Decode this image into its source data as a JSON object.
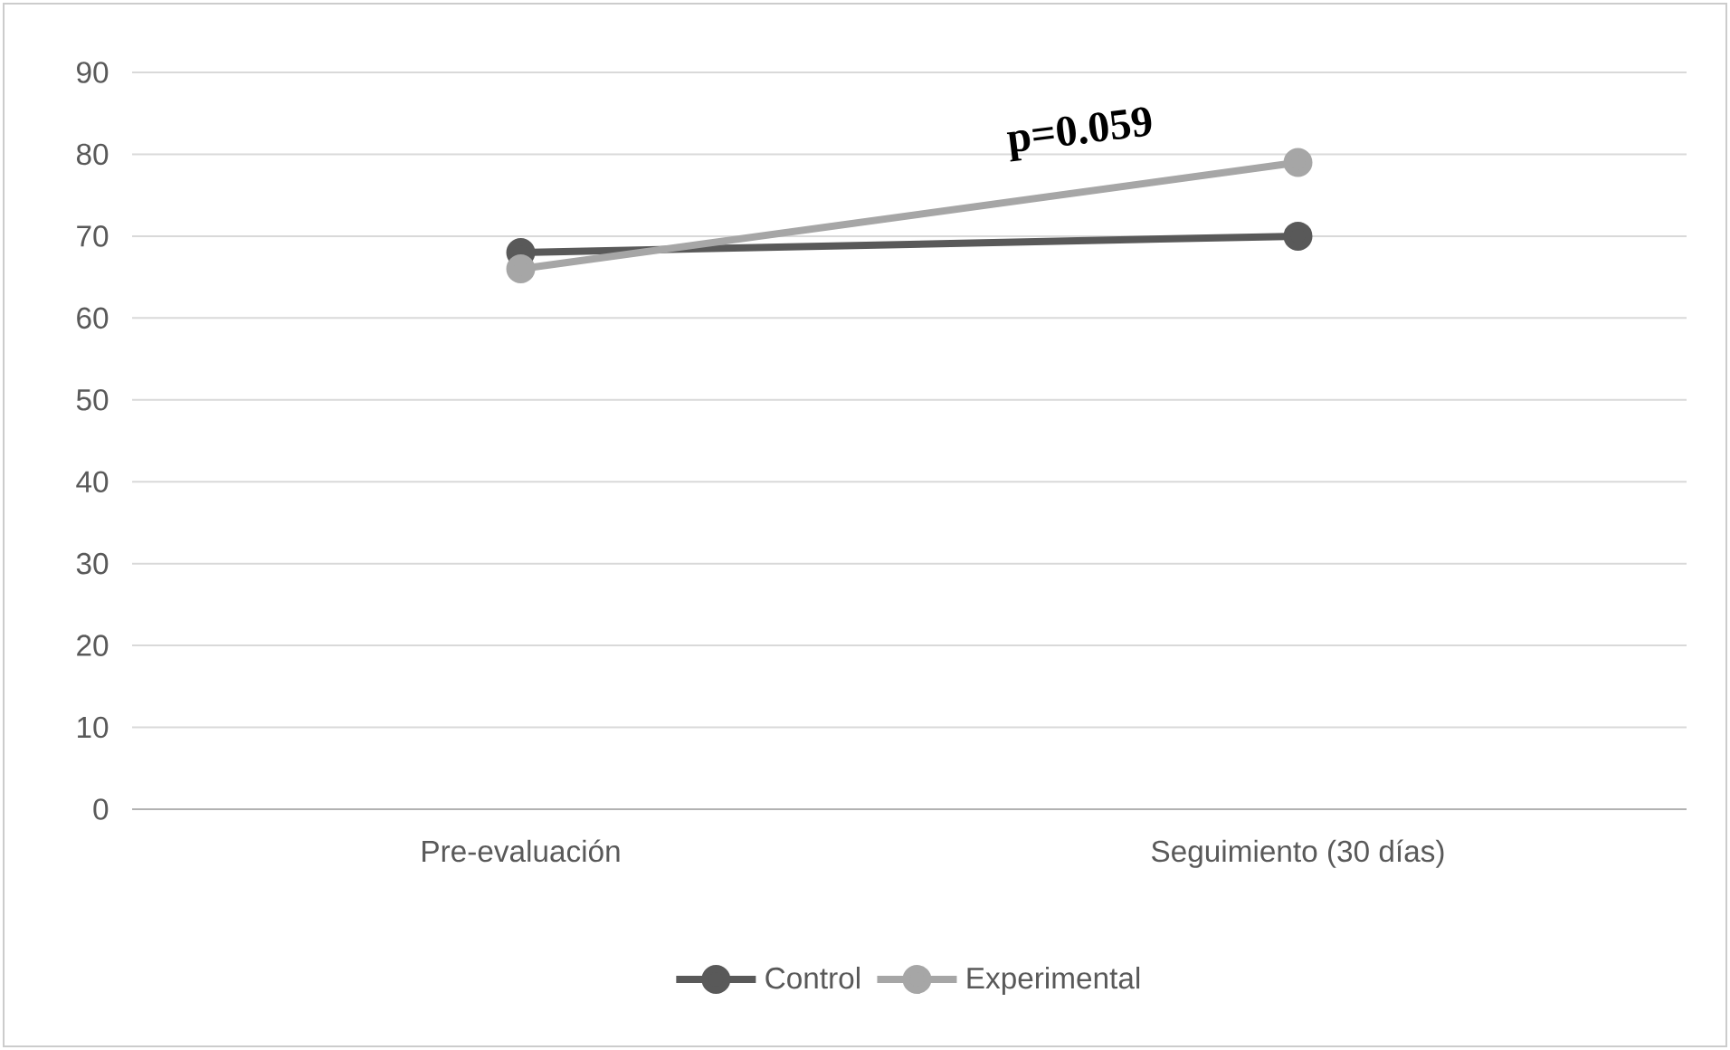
{
  "chart_data": {
    "type": "line",
    "categories": [
      "Pre-evaluación",
      "Seguimiento (30 días)"
    ],
    "series": [
      {
        "name": "Control",
        "color": "#595959",
        "values": [
          68,
          70
        ]
      },
      {
        "name": "Experimental",
        "color": "#a6a6a6",
        "values": [
          66,
          79
        ]
      }
    ],
    "ylim": [
      0,
      90
    ],
    "yticks": [
      0,
      10,
      20,
      30,
      40,
      50,
      60,
      70,
      80,
      90
    ],
    "grid": "y",
    "legend": "bottom",
    "marker": "circle",
    "line_style": "solid",
    "annotations": [
      "p=0.059"
    ]
  }
}
